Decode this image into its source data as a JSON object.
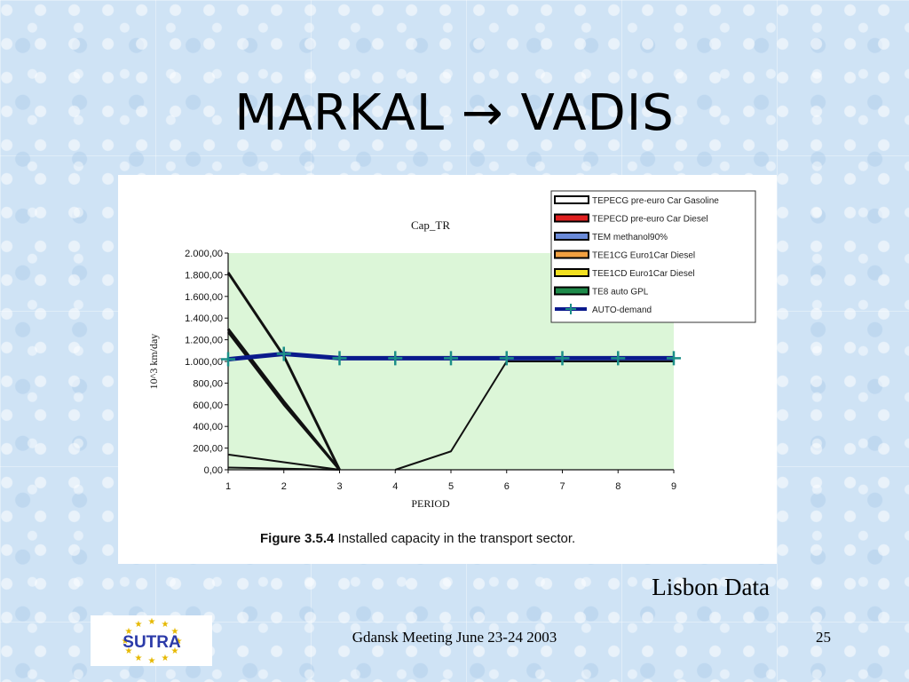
{
  "slide": {
    "title": "MARKAL → VADIS",
    "source_note": "Lisbon Data",
    "footer": "Gdansk Meeting June 23-24 2003",
    "page_number": "25",
    "logo_text": "SUTRA",
    "figure_label": "Figure 3.5.4",
    "figure_caption": "Installed capacity in the transport sector."
  },
  "colors": {
    "plot_bg": "#dcf6d8",
    "demand_line": "#0a1a8c",
    "demand_marker": "#1b8f88",
    "series_line": "#111111",
    "logo_blue": "#2b3aa8",
    "logo_red": "#d01818",
    "logo_star": "#e6b800"
  },
  "chart_data": {
    "type": "line",
    "title": "Cap_TR",
    "xlabel": "PERIOD",
    "ylabel": "10^3 km/day",
    "x": [
      1,
      2,
      3,
      4,
      5,
      6,
      7,
      8,
      9
    ],
    "xlim": [
      1,
      9
    ],
    "ylim": [
      0,
      2000
    ],
    "y_ticks": [
      "0,00",
      "200,00",
      "400,00",
      "600,00",
      "800,00",
      "1.000,00",
      "1.200,00",
      "1.400,00",
      "1.600,00",
      "1.800,00",
      "2.000,00"
    ],
    "y_tick_values": [
      0,
      200,
      400,
      600,
      800,
      1000,
      1200,
      1400,
      1600,
      1800,
      2000
    ],
    "legend_position": "top-right",
    "series": [
      {
        "name": "TEPECG pre-euro Car Gasoline",
        "swatch": "#ffffff",
        "values": [
          1820,
          1050,
          0,
          null,
          null,
          null,
          null,
          null,
          null
        ]
      },
      {
        "name": "TEPECD pre-euro Car Diesel",
        "swatch": "#e02020",
        "values": [
          1300,
          630,
          0,
          null,
          null,
          null,
          null,
          null,
          null
        ]
      },
      {
        "name": "TEM methanol90%",
        "swatch": "#6a8ad8",
        "values": [
          1270,
          600,
          0,
          null,
          null,
          null,
          null,
          null,
          null
        ]
      },
      {
        "name": "TEE1CG Euro1Car Diesel",
        "swatch": "#f2a040",
        "values": [
          140,
          70,
          0,
          null,
          null,
          null,
          null,
          null,
          null
        ]
      },
      {
        "name": "TEE1CD Euro1Car Diesel",
        "swatch": "#f2e020",
        "values": [
          null,
          null,
          null,
          0,
          170,
          1000,
          1000,
          1000,
          1000
        ]
      },
      {
        "name": "TE8 auto GPL",
        "swatch": "#1e8a4a",
        "values": [
          20,
          10,
          0,
          null,
          null,
          null,
          null,
          null,
          null
        ]
      },
      {
        "name": "AUTO-demand",
        "swatch": "#0a1a8c",
        "values": [
          1020,
          1070,
          1030,
          1030,
          1030,
          1030,
          1030,
          1030,
          1030
        ]
      }
    ]
  }
}
